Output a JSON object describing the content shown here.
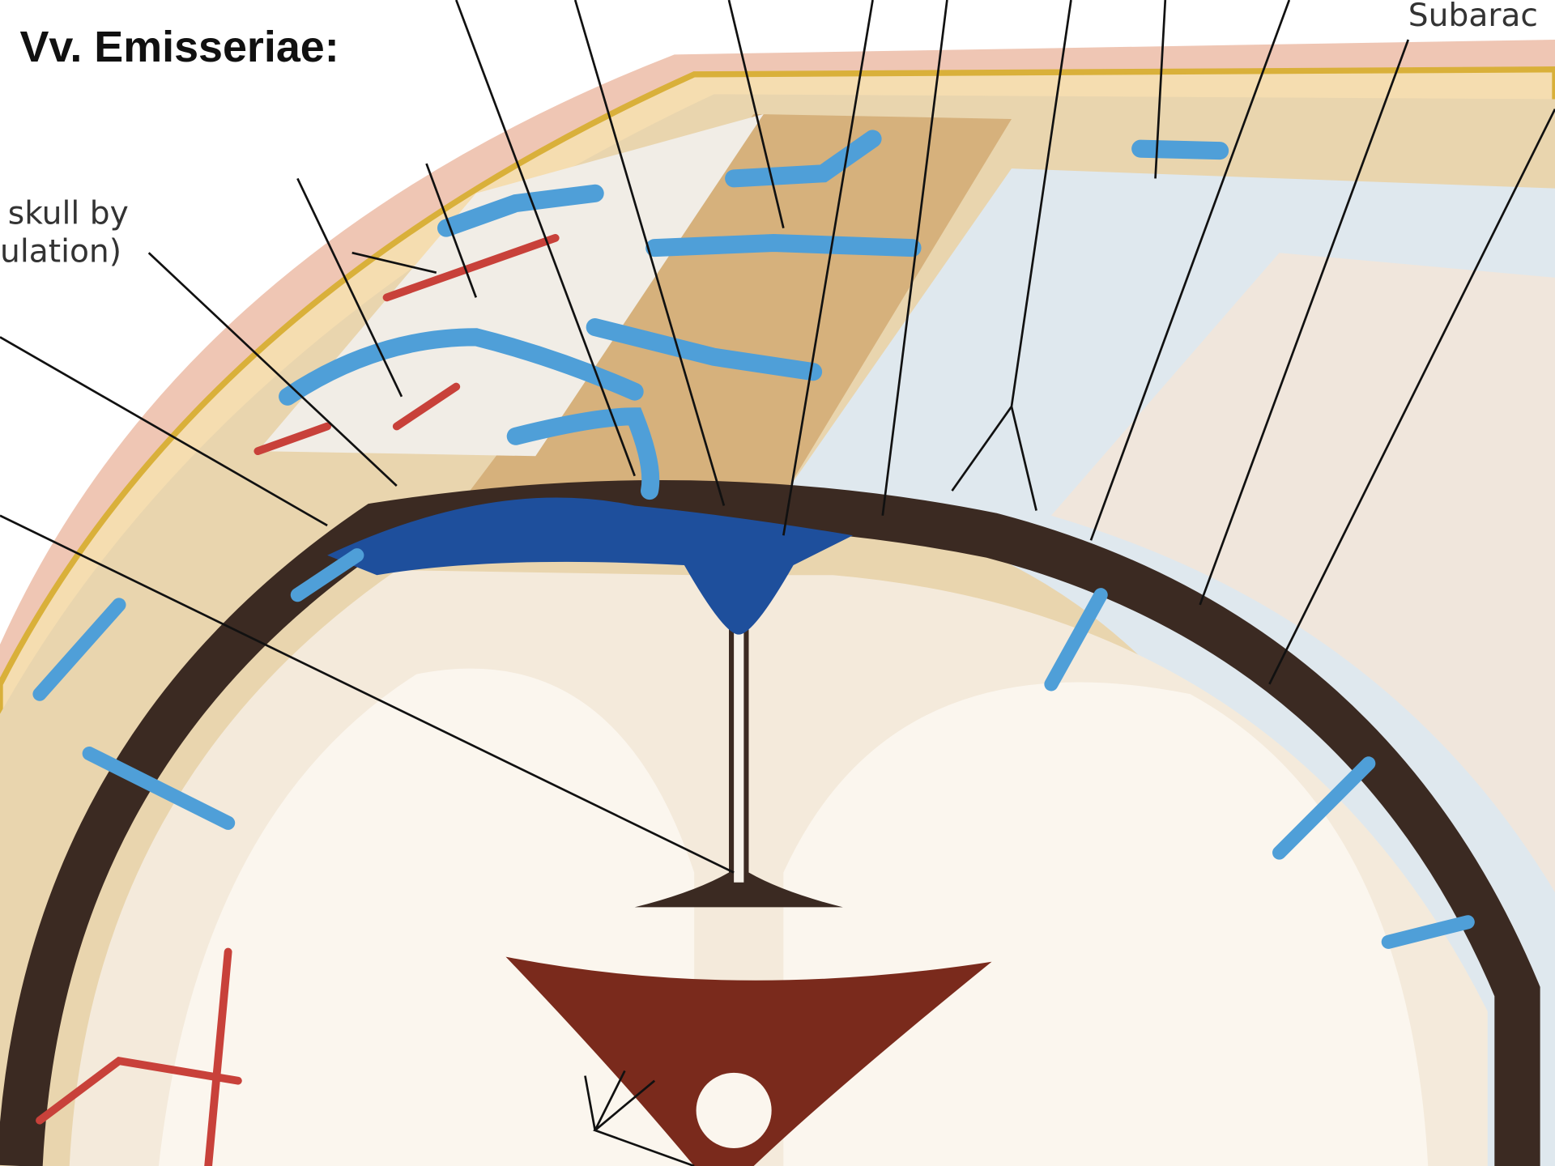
{
  "title": "Vv. Emisseriae:",
  "labels": [
    {
      "text": "skull by"
    },
    {
      "text": "ulation)"
    },
    {
      "text": "Subarac"
    }
  ]
}
